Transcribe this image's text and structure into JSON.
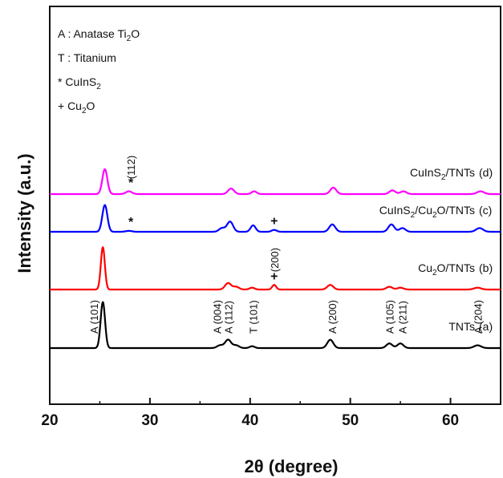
{
  "chart_data": {
    "type": "line",
    "xlabel": "2θ (degree)",
    "ylabel": "Intensity (a.u.)",
    "xlim": [
      20,
      65
    ],
    "xticks": [
      "20",
      "30",
      "40",
      "50",
      "60"
    ],
    "yticks": "none",
    "grid": false,
    "legend_position": "top-left",
    "legend_entries": [
      {
        "key": "A",
        "text": "Anatase Ti",
        "sub": "2",
        "tail": "O",
        "sep": " : "
      },
      {
        "key": "T",
        "text": "Titanium",
        "sub": "",
        "tail": "",
        "sep": " : "
      },
      {
        "key": "*",
        "text": "CuInS",
        "sub": "2",
        "tail": "",
        "sep": " "
      },
      {
        "key": "+",
        "text": "Cu",
        "sub": "2",
        "tail": "O",
        "sep": " "
      }
    ],
    "series": [
      {
        "id": "a",
        "label_parts": [
          "TNTs"
        ],
        "tag": "(a)",
        "color": "#000000",
        "baseline": 0,
        "peaks": [
          {
            "x": 25.3,
            "h": 50,
            "w": 0.22
          },
          {
            "x": 37.0,
            "h": 3,
            "w": 0.3
          },
          {
            "x": 37.8,
            "h": 9,
            "w": 0.3
          },
          {
            "x": 38.6,
            "h": 3,
            "w": 0.3
          },
          {
            "x": 40.2,
            "h": 2,
            "w": 0.25
          },
          {
            "x": 48.0,
            "h": 9,
            "w": 0.3
          },
          {
            "x": 53.9,
            "h": 5,
            "w": 0.3
          },
          {
            "x": 55.0,
            "h": 5,
            "w": 0.3
          },
          {
            "x": 62.7,
            "h": 3,
            "w": 0.35
          }
        ]
      },
      {
        "id": "b",
        "label_parts": [
          "Cu",
          "2",
          "O/TNTs"
        ],
        "tag": "(b)",
        "color": "#ff0000",
        "baseline": 73,
        "peaks": [
          {
            "x": 25.3,
            "h": 46,
            "w": 0.2
          },
          {
            "x": 37.8,
            "h": 7,
            "w": 0.3
          },
          {
            "x": 38.6,
            "h": 3,
            "w": 0.3
          },
          {
            "x": 40.2,
            "h": 2,
            "w": 0.25
          },
          {
            "x": 42.4,
            "h": 5,
            "w": 0.2
          },
          {
            "x": 48.0,
            "h": 5,
            "w": 0.3
          },
          {
            "x": 53.9,
            "h": 3,
            "w": 0.3
          },
          {
            "x": 55.0,
            "h": 2,
            "w": 0.3
          },
          {
            "x": 62.7,
            "h": 2,
            "w": 0.35
          }
        ]
      },
      {
        "id": "c",
        "label_parts": [
          "CuInS",
          "2",
          "/Cu",
          "2",
          "O/TNTs"
        ],
        "tag": "(c)",
        "color": "#0000ff",
        "baseline": 145,
        "peaks": [
          {
            "x": 25.5,
            "h": 29,
            "w": 0.25
          },
          {
            "x": 27.9,
            "h": 1,
            "w": 0.3
          },
          {
            "x": 37.2,
            "h": 4,
            "w": 0.3
          },
          {
            "x": 38.0,
            "h": 11,
            "w": 0.3
          },
          {
            "x": 40.3,
            "h": 7,
            "w": 0.25
          },
          {
            "x": 42.4,
            "h": 2,
            "w": 0.25
          },
          {
            "x": 48.2,
            "h": 8,
            "w": 0.3
          },
          {
            "x": 54.1,
            "h": 8,
            "w": 0.3
          },
          {
            "x": 55.2,
            "h": 4,
            "w": 0.3
          },
          {
            "x": 62.9,
            "h": 4,
            "w": 0.35
          }
        ]
      },
      {
        "id": "d",
        "label_parts": [
          "CuInS",
          "2",
          "/TNTs"
        ],
        "tag": "(d)",
        "color": "#ff00ff",
        "baseline": 192,
        "peaks": [
          {
            "x": 25.5,
            "h": 27,
            "w": 0.25
          },
          {
            "x": 27.9,
            "h": 3,
            "w": 0.3
          },
          {
            "x": 38.1,
            "h": 6,
            "w": 0.3
          },
          {
            "x": 40.4,
            "h": 3,
            "w": 0.25
          },
          {
            "x": 48.3,
            "h": 7,
            "w": 0.3
          },
          {
            "x": 54.2,
            "h": 4,
            "w": 0.3
          },
          {
            "x": 55.3,
            "h": 3,
            "w": 0.3
          },
          {
            "x": 63.0,
            "h": 3,
            "w": 0.35
          }
        ]
      }
    ],
    "peak_annotations": [
      {
        "x": 24.4,
        "text": "A (101)"
      },
      {
        "x": 36.7,
        "text": "A (004)"
      },
      {
        "x": 37.8,
        "text": "A (112)"
      },
      {
        "x": 40.3,
        "text": "T (101)"
      },
      {
        "x": 48.2,
        "text": "A (200)"
      },
      {
        "x": 53.9,
        "text": "A (105)"
      },
      {
        "x": 55.2,
        "text": "A (211)"
      },
      {
        "x": 62.7,
        "text": "A (204)"
      }
    ],
    "marker_annotations": [
      {
        "x": 28.1,
        "symbol": "*",
        "series": "d",
        "text": "(112)"
      },
      {
        "x": 28.1,
        "symbol": "*",
        "series": "c",
        "text": ""
      },
      {
        "x": 42.4,
        "symbol": "+",
        "series": "c",
        "text": ""
      },
      {
        "x": 42.4,
        "symbol": "+",
        "series": "b",
        "text": "(200)"
      }
    ]
  }
}
